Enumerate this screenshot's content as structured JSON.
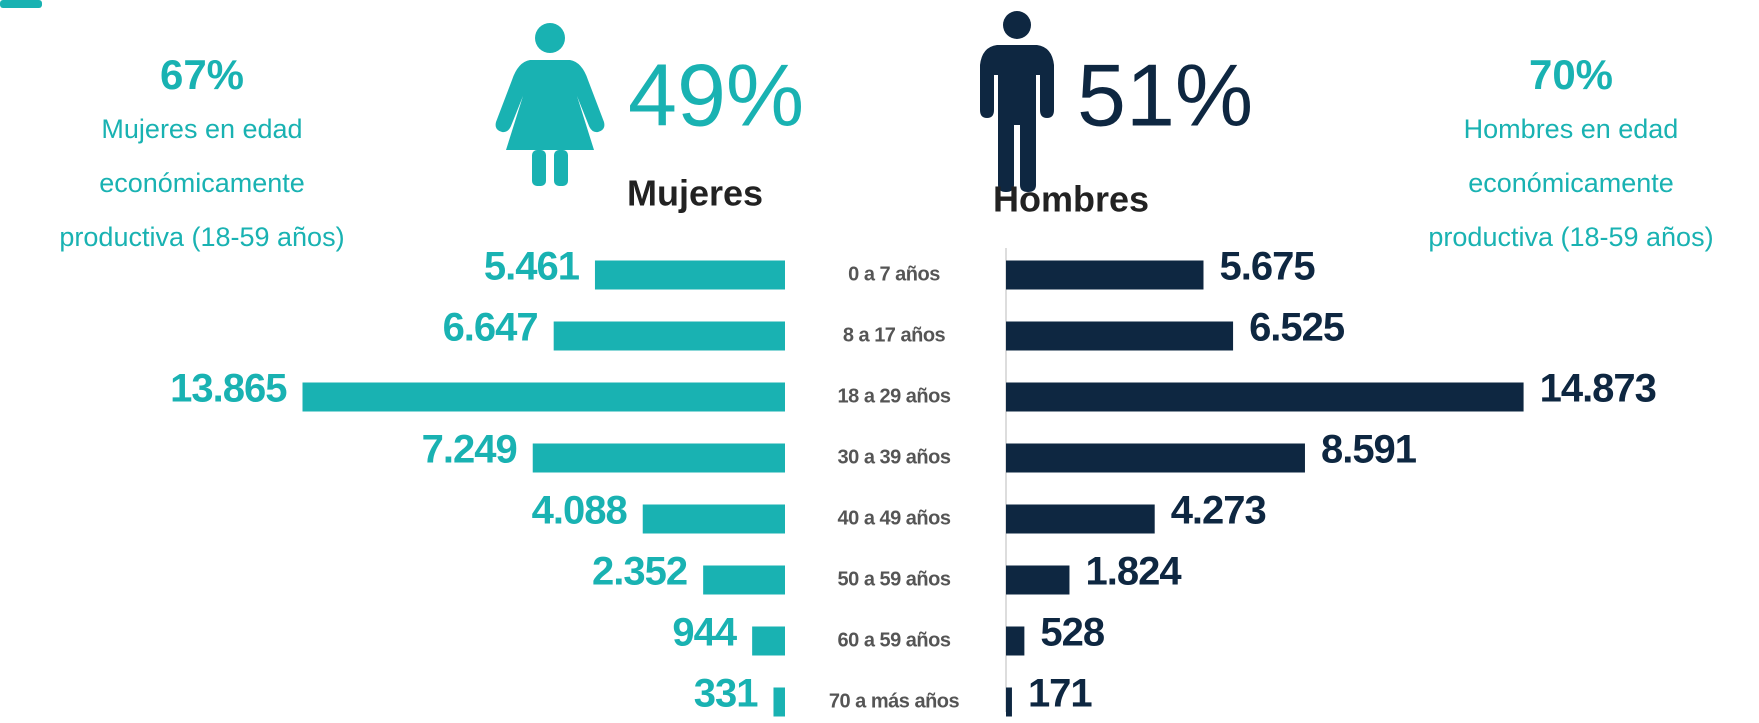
{
  "chart_data": {
    "type": "pyramid",
    "categories": [
      "0 a 7 años",
      "8 a 17 años",
      "18 a 29 años",
      "30 a 39 años",
      "40 a 49 años",
      "50 a 59 años",
      "60 a 59 años",
      "70 a más años"
    ],
    "series": [
      {
        "name": "Mujeres",
        "color": "#19b2b2",
        "share": "49%",
        "productive_share": "67%",
        "productive_note": [
          "Mujeres en edad",
          "económicamente",
          "productiva (18-59 años)"
        ],
        "values": [
          5461,
          6647,
          13865,
          7249,
          4088,
          2352,
          944,
          331
        ],
        "value_labels": [
          "5.461",
          "6.647",
          "13.865",
          "7.249",
          "4.088",
          "2.352",
          "944",
          "331"
        ]
      },
      {
        "name": "Hombres",
        "color": "#0e2741",
        "share": "51%",
        "productive_share": "70%",
        "productive_note": [
          "Hombres en edad",
          "económicamente",
          "productiva (18-59 años)"
        ],
        "values": [
          5675,
          6525,
          14873,
          8591,
          4273,
          1824,
          528,
          171
        ],
        "value_labels": [
          "5.675",
          "6.525",
          "14.873",
          "8.591",
          "4.273",
          "1.824",
          "528",
          "171"
        ]
      }
    ]
  }
}
